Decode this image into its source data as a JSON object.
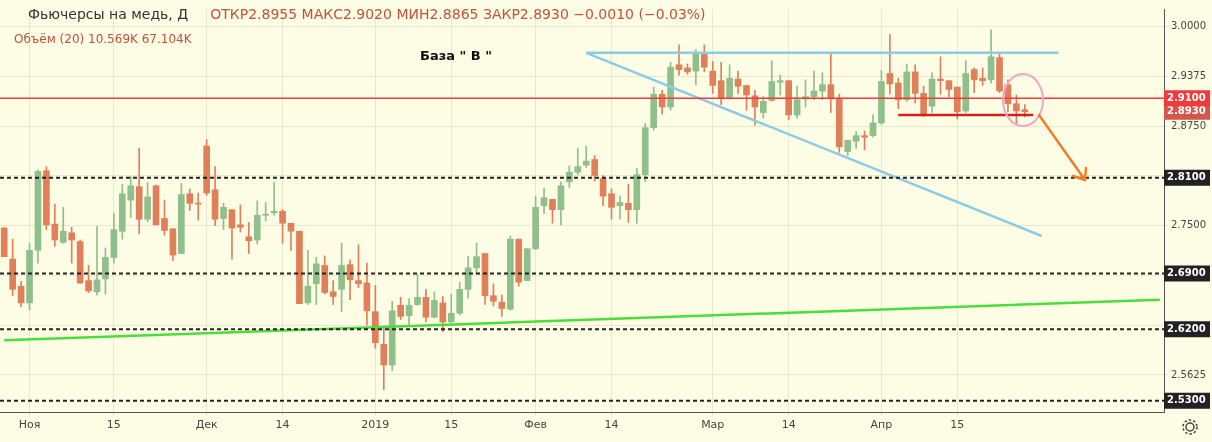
{
  "chart_data": {
    "type": "candlestick",
    "title": "Фьючерсы на медь, Д",
    "subtitle": "ОТКР2.8955 МАКС2.9020 МИН2.8865 ЗАКР2.8930 −0.0010 (−0.03%)",
    "annotations": [
      "База  \" В \"",
      "Объём (20)  10.569K  67.104K",
      "2.8930"
    ],
    "categories": [
      null,
      null,
      null,
      "Ноя",
      null,
      null,
      null,
      null,
      null,
      null,
      null,
      null,
      null,
      "15",
      null,
      null,
      null,
      null,
      null,
      null,
      null,
      null,
      null,
      null,
      "Дек",
      null,
      null,
      null,
      null,
      null,
      null,
      null,
      null,
      "14",
      null,
      null,
      null,
      null,
      null,
      null,
      null,
      null,
      null,
      null,
      "2019",
      null,
      null,
      null,
      null,
      null,
      null,
      null,
      null,
      "15",
      null,
      null,
      null,
      null,
      null,
      null,
      null,
      null,
      null,
      "Фев",
      null,
      null,
      null,
      null,
      null,
      null,
      null,
      null,
      "14",
      null,
      null,
      null,
      null,
      null,
      null,
      null,
      null,
      null,
      null,
      null,
      "Мар",
      null,
      null,
      null,
      null,
      null,
      null,
      null,
      null,
      "14",
      null,
      null,
      null,
      null,
      null,
      null,
      null,
      null,
      null,
      null,
      "Апр",
      null,
      null,
      null,
      null,
      null,
      null,
      null,
      null,
      "15",
      null,
      null,
      null,
      null,
      null,
      null,
      null,
      null,
      null,
      null,
      null,
      null,
      null,
      null,
      null,
      null,
      null,
      null,
      null,
      null,
      null,
      null,
      null,
      null
    ],
    "ohlc": [
      [
        2.747,
        2.748,
        2.711,
        2.711
      ],
      [
        2.708,
        2.733,
        2.662,
        2.67
      ],
      [
        2.674,
        2.68,
        2.648,
        2.653
      ],
      [
        2.653,
        2.728,
        2.644,
        2.719
      ],
      [
        2.719,
        2.82,
        2.703,
        2.818
      ],
      [
        2.819,
        2.824,
        2.745,
        2.751
      ],
      [
        2.752,
        2.777,
        2.724,
        2.732
      ],
      [
        2.729,
        2.773,
        2.728,
        2.743
      ],
      [
        2.741,
        2.748,
        2.703,
        2.732
      ],
      [
        2.73,
        2.732,
        2.677,
        2.678
      ],
      [
        2.681,
        2.7,
        2.666,
        2.668
      ],
      [
        2.667,
        2.749,
        2.663,
        2.682
      ],
      [
        2.683,
        2.722,
        2.664,
        2.71
      ],
      [
        2.71,
        2.765,
        2.703,
        2.745
      ],
      [
        2.743,
        2.802,
        2.733,
        2.79
      ],
      [
        2.782,
        2.812,
        2.76,
        2.8
      ],
      [
        2.799,
        2.847,
        2.74,
        2.758
      ],
      [
        2.758,
        2.804,
        2.755,
        2.786
      ],
      [
        2.8,
        2.801,
        2.751,
        2.751
      ],
      [
        2.759,
        2.782,
        2.738,
        2.744
      ],
      [
        2.746,
        2.746,
        2.706,
        2.713
      ],
      [
        2.715,
        2.803,
        2.715,
        2.789
      ],
      [
        2.79,
        2.796,
        2.769,
        2.778
      ],
      [
        2.778,
        2.791,
        2.757,
        2.777
      ],
      [
        2.85,
        2.858,
        2.788,
        2.791
      ],
      [
        2.795,
        2.824,
        2.75,
        2.758
      ],
      [
        2.759,
        2.778,
        2.745,
        2.773
      ],
      [
        2.77,
        2.77,
        2.708,
        2.747
      ],
      [
        2.751,
        2.776,
        2.742,
        2.748
      ],
      [
        2.736,
        2.754,
        2.715,
        2.731
      ],
      [
        2.732,
        2.781,
        2.727,
        2.763
      ],
      [
        2.763,
        2.779,
        2.756,
        2.764
      ],
      [
        2.766,
        2.804,
        2.763,
        2.768
      ],
      [
        2.768,
        2.77,
        2.728,
        2.753
      ],
      [
        2.753,
        2.753,
        2.719,
        2.743
      ],
      [
        2.743,
        2.743,
        2.652,
        2.652
      ],
      [
        2.653,
        2.719,
        2.651,
        2.674
      ],
      [
        2.677,
        2.71,
        2.651,
        2.702
      ],
      [
        2.7,
        2.712,
        2.664,
        2.666
      ],
      [
        2.667,
        2.681,
        2.651,
        2.661
      ],
      [
        2.67,
        2.728,
        2.642,
        2.7
      ],
      [
        2.701,
        2.707,
        2.657,
        2.682
      ],
      [
        2.681,
        2.726,
        2.672,
        2.677
      ],
      [
        2.678,
        2.703,
        2.625,
        2.643
      ],
      [
        2.642,
        2.675,
        2.596,
        2.603
      ],
      [
        2.601,
        2.621,
        2.544,
        2.575
      ],
      [
        2.575,
        2.655,
        2.568,
        2.643
      ],
      [
        2.65,
        2.66,
        2.632,
        2.636
      ],
      [
        2.637,
        2.658,
        2.625,
        2.65
      ],
      [
        2.651,
        2.689,
        2.65,
        2.66
      ],
      [
        2.66,
        2.67,
        2.629,
        2.635
      ],
      [
        2.635,
        2.667,
        2.634,
        2.656
      ],
      [
        2.653,
        2.661,
        2.617,
        2.629
      ],
      [
        2.629,
        2.664,
        2.628,
        2.64
      ],
      [
        2.64,
        2.679,
        2.638,
        2.67
      ],
      [
        2.67,
        2.711,
        2.659,
        2.697
      ],
      [
        2.697,
        2.728,
        2.689,
        2.711
      ],
      [
        2.715,
        2.715,
        2.651,
        2.662
      ],
      [
        2.662,
        2.677,
        2.649,
        2.655
      ],
      [
        2.654,
        2.663,
        2.636,
        2.646
      ],
      [
        2.645,
        2.737,
        2.644,
        2.733
      ],
      [
        2.733,
        2.733,
        2.674,
        2.679
      ],
      [
        2.681,
        2.721,
        2.681,
        2.721
      ],
      [
        2.721,
        2.787,
        2.72,
        2.773
      ],
      [
        2.775,
        2.797,
        2.765,
        2.785
      ],
      [
        2.783,
        2.783,
        2.753,
        2.77
      ],
      [
        2.77,
        2.805,
        2.751,
        2.8
      ],
      [
        2.805,
        2.825,
        2.798,
        2.817
      ],
      [
        2.817,
        2.847,
        2.814,
        2.824
      ],
      [
        2.826,
        2.85,
        2.823,
        2.831
      ],
      [
        2.833,
        2.838,
        2.806,
        2.813
      ],
      [
        2.809,
        2.813,
        2.775,
        2.787
      ],
      [
        2.79,
        2.796,
        2.758,
        2.773
      ],
      [
        2.775,
        2.787,
        2.758,
        2.779
      ],
      [
        2.778,
        2.802,
        2.754,
        2.77
      ],
      [
        2.77,
        2.822,
        2.753,
        2.814
      ],
      [
        2.814,
        2.878,
        2.805,
        2.873
      ],
      [
        2.873,
        2.924,
        2.87,
        2.915
      ],
      [
        2.915,
        2.92,
        2.89,
        2.899
      ],
      [
        2.899,
        2.955,
        2.895,
        2.949
      ],
      [
        2.952,
        2.977,
        2.939,
        2.946
      ],
      [
        2.948,
        2.953,
        2.94,
        2.943
      ],
      [
        2.944,
        2.971,
        2.927,
        2.965
      ],
      [
        2.965,
        2.977,
        2.943,
        2.949
      ],
      [
        2.944,
        2.956,
        2.916,
        2.926
      ],
      [
        2.932,
        2.955,
        2.902,
        2.91
      ],
      [
        2.911,
        2.952,
        2.909,
        2.935
      ],
      [
        2.934,
        2.944,
        2.916,
        2.925
      ],
      [
        2.926,
        2.926,
        2.895,
        2.914
      ],
      [
        2.913,
        2.92,
        2.876,
        2.899
      ],
      [
        2.892,
        2.912,
        2.885,
        2.906
      ],
      [
        2.907,
        2.957,
        2.906,
        2.931
      ],
      [
        2.93,
        2.939,
        2.914,
        2.932
      ],
      [
        2.932,
        2.932,
        2.883,
        2.889
      ],
      [
        2.889,
        2.925,
        2.885,
        2.908
      ],
      [
        2.909,
        2.933,
        2.899,
        2.912
      ],
      [
        2.912,
        2.944,
        2.908,
        2.919
      ],
      [
        2.919,
        2.942,
        2.908,
        2.927
      ],
      [
        2.927,
        2.966,
        2.892,
        2.91
      ],
      [
        2.91,
        2.915,
        2.842,
        2.849
      ],
      [
        2.843,
        2.857,
        2.838,
        2.857
      ],
      [
        2.856,
        2.868,
        2.847,
        2.863
      ],
      [
        2.863,
        2.869,
        2.845,
        2.861
      ],
      [
        2.863,
        2.889,
        2.861,
        2.879
      ],
      [
        2.879,
        2.945,
        2.877,
        2.931
      ],
      [
        2.941,
        2.99,
        2.915,
        2.928
      ],
      [
        2.929,
        2.935,
        2.897,
        2.908
      ],
      [
        2.908,
        2.953,
        2.906,
        2.943
      ],
      [
        2.943,
        2.952,
        2.904,
        2.916
      ],
      [
        2.916,
        2.925,
        2.887,
        2.888
      ],
      [
        2.9,
        2.942,
        2.892,
        2.934
      ],
      [
        2.934,
        2.962,
        2.915,
        2.932
      ],
      [
        2.932,
        2.932,
        2.912,
        2.921
      ],
      [
        2.924,
        2.924,
        2.884,
        2.893
      ],
      [
        2.894,
        2.957,
        2.892,
        2.941
      ],
      [
        2.946,
        2.948,
        2.917,
        2.933
      ],
      [
        2.935,
        2.948,
        2.926,
        2.932
      ],
      [
        2.933,
        2.996,
        2.929,
        2.962
      ],
      [
        2.961,
        2.965,
        2.917,
        2.919
      ],
      [
        2.927,
        2.933,
        2.893,
        2.903
      ],
      [
        2.903,
        2.914,
        2.878,
        2.894
      ],
      [
        2.8955,
        2.902,
        2.8865,
        2.893
      ],
      null,
      null,
      null,
      null,
      null,
      null,
      null,
      null,
      null,
      null,
      null,
      null,
      null,
      null,
      null,
      null
    ],
    "colors": [
      "#e0805a",
      "#e0805a",
      "#e0805a",
      "#8fbf8a",
      "#8fbf8a",
      "#e0805a",
      "#e0805a",
      "#8fbf8a",
      "#e0805a",
      "#e0805a",
      "#e0805a",
      "#8fbf8a",
      "#8fbf8a",
      "#8fbf8a",
      "#8fbf8a",
      "#8fbf8a",
      "#e0805a",
      "#8fbf8a",
      "#e0805a",
      "#e0805a",
      "#e0805a",
      "#8fbf8a",
      "#e0805a",
      "#e0805a",
      "#e0805a",
      "#e0805a",
      "#8fbf8a",
      "#e0805a",
      "#e0805a",
      "#e0805a",
      "#8fbf8a",
      "#8fbf8a",
      "#8fbf8a",
      "#e0805a",
      "#e0805a",
      "#e0805a",
      "#8fbf8a",
      "#8fbf8a",
      "#e0805a",
      "#e0805a",
      "#8fbf8a",
      "#e0805a",
      "#e0805a",
      "#e0805a",
      "#e0805a",
      "#e0805a",
      "#8fbf8a",
      "#e0805a",
      "#8fbf8a",
      "#8fbf8a",
      "#e0805a",
      "#8fbf8a",
      "#e0805a",
      "#8fbf8a",
      "#8fbf8a",
      "#8fbf8a",
      "#8fbf8a",
      "#e0805a",
      "#e0805a",
      "#e0805a",
      "#8fbf8a",
      "#e0805a",
      "#8fbf8a",
      "#8fbf8a",
      "#8fbf8a",
      "#e0805a",
      "#8fbf8a",
      "#8fbf8a",
      "#8fbf8a",
      "#8fbf8a",
      "#e0805a",
      "#e0805a",
      "#e0805a",
      "#8fbf8a",
      "#e0805a",
      "#8fbf8a",
      "#8fbf8a",
      "#8fbf8a",
      "#e0805a",
      "#8fbf8a",
      "#e0805a",
      "#e0805a",
      "#8fbf8a",
      "#e0805a",
      "#e0805a",
      "#e0805a",
      "#8fbf8a",
      "#e0805a",
      "#e0805a",
      "#e0805a",
      "#8fbf8a",
      "#8fbf8a",
      "#8fbf8a",
      "#e0805a",
      "#8fbf8a",
      "#8fbf8a",
      "#8fbf8a",
      "#8fbf8a",
      "#e0805a",
      "#e0805a",
      "#8fbf8a",
      "#8fbf8a",
      "#e0805a",
      "#8fbf8a",
      "#8fbf8a",
      "#e0805a",
      "#e0805a",
      "#8fbf8a",
      "#e0805a",
      "#e0805a",
      "#8fbf8a",
      "#e0805a",
      "#e0805a",
      "#e0805a",
      "#8fbf8a",
      "#e0805a",
      "#e0805a",
      "#8fbf8a",
      "#e0805a",
      "#e0805a",
      "#e0805a",
      "#e0805a",
      null,
      null,
      null,
      null,
      null,
      null,
      null,
      null,
      null,
      null,
      null,
      null,
      null,
      null,
      null,
      null
    ],
    "series": [
      {
        "type": "line",
        "color": "#8ccbe6",
        "values": [
          null,
          null,
          null,
          null,
          null,
          null,
          null,
          null,
          null,
          null,
          null,
          null,
          null,
          null,
          null,
          null,
          null,
          null,
          null,
          null,
          null,
          null,
          null,
          null,
          null,
          null,
          null,
          null,
          null,
          null,
          null,
          null,
          null,
          null,
          null,
          null,
          null,
          null,
          null,
          null,
          null,
          null,
          null,
          null,
          null,
          null,
          null,
          null,
          null,
          null,
          null,
          null,
          null,
          null,
          null,
          null,
          null,
          null,
          null,
          null,
          null,
          null,
          null,
          null,
          null,
          null,
          null,
          null,
          null,
          2.967,
          null,
          null,
          null,
          null,
          null,
          null,
          null,
          null,
          null,
          null,
          null,
          null,
          null,
          null,
          null,
          null,
          null,
          null,
          null,
          null,
          null,
          null,
          null,
          null,
          null,
          null,
          null,
          null,
          null,
          null,
          null,
          null,
          null,
          null,
          null,
          null,
          null,
          null,
          null,
          null,
          null,
          null,
          null,
          null,
          null,
          null,
          null,
          null,
          null,
          null,
          null,
          null,
          null,
          null,
          null,
          2.967,
          null,
          null,
          null,
          null,
          null,
          null,
          null,
          null,
          null,
          null,
          null,
          null
        ]
      },
      {
        "type": "line",
        "color": "#8ccbe6",
        "values": [
          null,
          null,
          null,
          null,
          null,
          null,
          null,
          null,
          null,
          null,
          null,
          null,
          null,
          null,
          null,
          null,
          null,
          null,
          null,
          null,
          null,
          null,
          null,
          null,
          null,
          null,
          null,
          null,
          null,
          null,
          null,
          null,
          null,
          null,
          null,
          null,
          null,
          null,
          null,
          null,
          null,
          null,
          null,
          null,
          null,
          null,
          null,
          null,
          null,
          null,
          null,
          null,
          null,
          null,
          null,
          null,
          null,
          null,
          null,
          null,
          null,
          null,
          null,
          null,
          null,
          null,
          null,
          null,
          null,
          2.967,
          null,
          null,
          null,
          null,
          null,
          null,
          null,
          null,
          null,
          null,
          null,
          null,
          null,
          null,
          null,
          null,
          null,
          null,
          null,
          null,
          null,
          null,
          null,
          null,
          null,
          null,
          null,
          null,
          null,
          null,
          null,
          null,
          null,
          null,
          null,
          null,
          null,
          null,
          null,
          null,
          null,
          null,
          null,
          null,
          null,
          null,
          null,
          null,
          null,
          null,
          null,
          null,
          null,
          2.737,
          null,
          null,
          null,
          null,
          null,
          null,
          null,
          null,
          null,
          null,
          null,
          null,
          null,
          null
        ]
      },
      {
        "type": "line",
        "color": "#4cdc3c",
        "values": [
          2.606,
          null,
          null,
          null,
          null,
          null,
          null,
          null,
          null,
          null,
          null,
          null,
          null,
          null,
          null,
          null,
          null,
          null,
          null,
          null,
          null,
          null,
          null,
          null,
          null,
          null,
          null,
          null,
          null,
          null,
          null,
          null,
          null,
          null,
          null,
          null,
          null,
          null,
          null,
          null,
          null,
          null,
          null,
          null,
          null,
          null,
          null,
          null,
          null,
          null,
          null,
          null,
          null,
          null,
          null,
          null,
          null,
          null,
          null,
          null,
          null,
          null,
          null,
          null,
          null,
          null,
          null,
          null,
          null,
          null,
          null,
          null,
          null,
          null,
          null,
          null,
          null,
          null,
          null,
          null,
          null,
          null,
          null,
          null,
          null,
          null,
          null,
          null,
          null,
          null,
          null,
          null,
          null,
          null,
          null,
          null,
          null,
          null,
          null,
          null,
          null,
          null,
          null,
          null,
          null,
          null,
          null,
          null,
          null,
          null,
          null,
          null,
          null,
          null,
          null,
          null,
          null,
          null,
          null,
          null,
          null,
          null,
          null,
          null,
          null,
          null,
          null,
          null,
          null,
          null,
          null,
          null,
          null,
          null,
          null,
          null,
          null,
          2.657
        ]
      },
      {
        "type": "line",
        "color": "#d0201e",
        "values": [
          null,
          null,
          null,
          null,
          null,
          null,
          null,
          null,
          null,
          null,
          null,
          null,
          null,
          null,
          null,
          null,
          null,
          null,
          null,
          null,
          null,
          null,
          null,
          null,
          null,
          null,
          null,
          null,
          null,
          null,
          null,
          null,
          null,
          null,
          null,
          null,
          null,
          null,
          null,
          null,
          null,
          null,
          null,
          null,
          null,
          null,
          null,
          null,
          null,
          null,
          null,
          null,
          null,
          null,
          null,
          null,
          null,
          null,
          null,
          null,
          null,
          null,
          null,
          null,
          null,
          null,
          null,
          null,
          null,
          null,
          null,
          null,
          null,
          null,
          null,
          null,
          null,
          null,
          null,
          null,
          null,
          null,
          null,
          null,
          null,
          null,
          null,
          null,
          null,
          null,
          null,
          null,
          null,
          null,
          null,
          null,
          null,
          null,
          null,
          null,
          null,
          null,
          null,
          null,
          null,
          null,
          2.889,
          null,
          null,
          null,
          null,
          null,
          null,
          null,
          null,
          null,
          null,
          null,
          null,
          null,
          null,
          null,
          2.889,
          null,
          null,
          null,
          null,
          null,
          null,
          null,
          null,
          null,
          null,
          null,
          null,
          null,
          null,
          null
        ]
      }
    ],
    "ylim": [
      2.516,
      3.022
    ],
    "yticks": [
      {
        "value": 3.0,
        "label": "3.0000"
      },
      {
        "value": 2.9375,
        "label": "2.9375"
      },
      {
        "value": 2.875,
        "label": "2.8750"
      },
      {
        "value": 2.8125,
        "label": null
      },
      {
        "value": 2.75,
        "label": "2.7500"
      },
      {
        "value": 2.6875,
        "label": null
      },
      {
        "value": 2.625,
        "label": null
      },
      {
        "value": 2.5625,
        "label": "2.5625"
      }
    ],
    "ref_lines": [
      {
        "axis": "y",
        "value": 2.91,
        "label": "2.9100",
        "color": "#f23a3a",
        "line_style": "solid"
      },
      {
        "axis": "y",
        "value": 2.81,
        "label": "2.8100",
        "color": "#222222",
        "line_style": "dashed"
      },
      {
        "axis": "y",
        "value": 2.69,
        "label": "2.6900",
        "color": "#222222",
        "line_style": "dashed"
      },
      {
        "axis": "y",
        "value": 2.62,
        "label": "2.6200",
        "color": "#222222",
        "line_style": "dashed"
      },
      {
        "axis": "y",
        "value": 2.53,
        "label": "2.5300",
        "color": "#222222",
        "line_style": "dashed"
      }
    ],
    "grid": true,
    "legend": false
  }
}
